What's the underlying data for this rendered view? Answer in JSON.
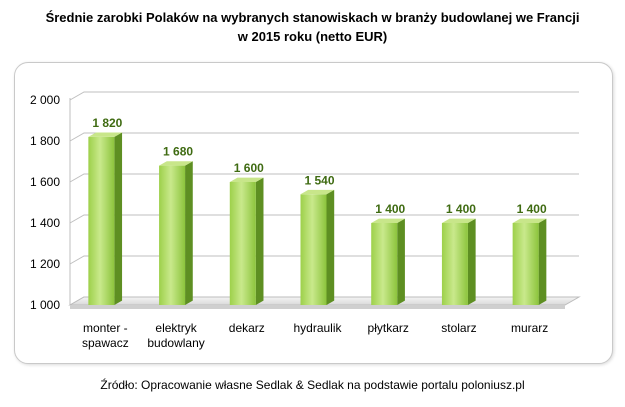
{
  "title_line1": "Średnie zarobki Polaków na wybranych stanowiskach w branży budowlanej we Francji",
  "title_line2": "w 2015  roku (netto EUR)",
  "source": "Źródło: Opracowanie własne Sedlak & Sedlak na podstawie  portalu poloniusz.pl",
  "colors": {
    "bar_light": "#c8e68a",
    "bar_mid": "#8cc43c",
    "bar_dark": "#5e8f22",
    "label": "#3f6b12"
  },
  "chart_data": {
    "type": "bar",
    "title": "Średnie zarobki Polaków na wybranych stanowiskach w branży budowlanej we Francji w 2015  roku (netto EUR)",
    "categories": [
      [
        "monter -",
        "spawacz"
      ],
      [
        "elektryk",
        "budowlany"
      ],
      [
        "dekarz"
      ],
      [
        "hydraulik"
      ],
      [
        "płytkarz"
      ],
      [
        "stolarz"
      ],
      [
        "murarz"
      ]
    ],
    "values": [
      1820,
      1680,
      1600,
      1540,
      1400,
      1400,
      1400
    ],
    "value_labels": [
      "1 820",
      "1 680",
      "1 600",
      "1 540",
      "1 400",
      "1 400",
      "1 400"
    ],
    "y_ticks": [
      1000,
      1200,
      1400,
      1600,
      1800,
      2000
    ],
    "y_tick_labels": [
      "1 000",
      "1 200",
      "1 400",
      "1 600",
      "1 800",
      "2 000"
    ],
    "ylim": [
      1000,
      2000
    ],
    "grid": true,
    "legend": "none"
  }
}
